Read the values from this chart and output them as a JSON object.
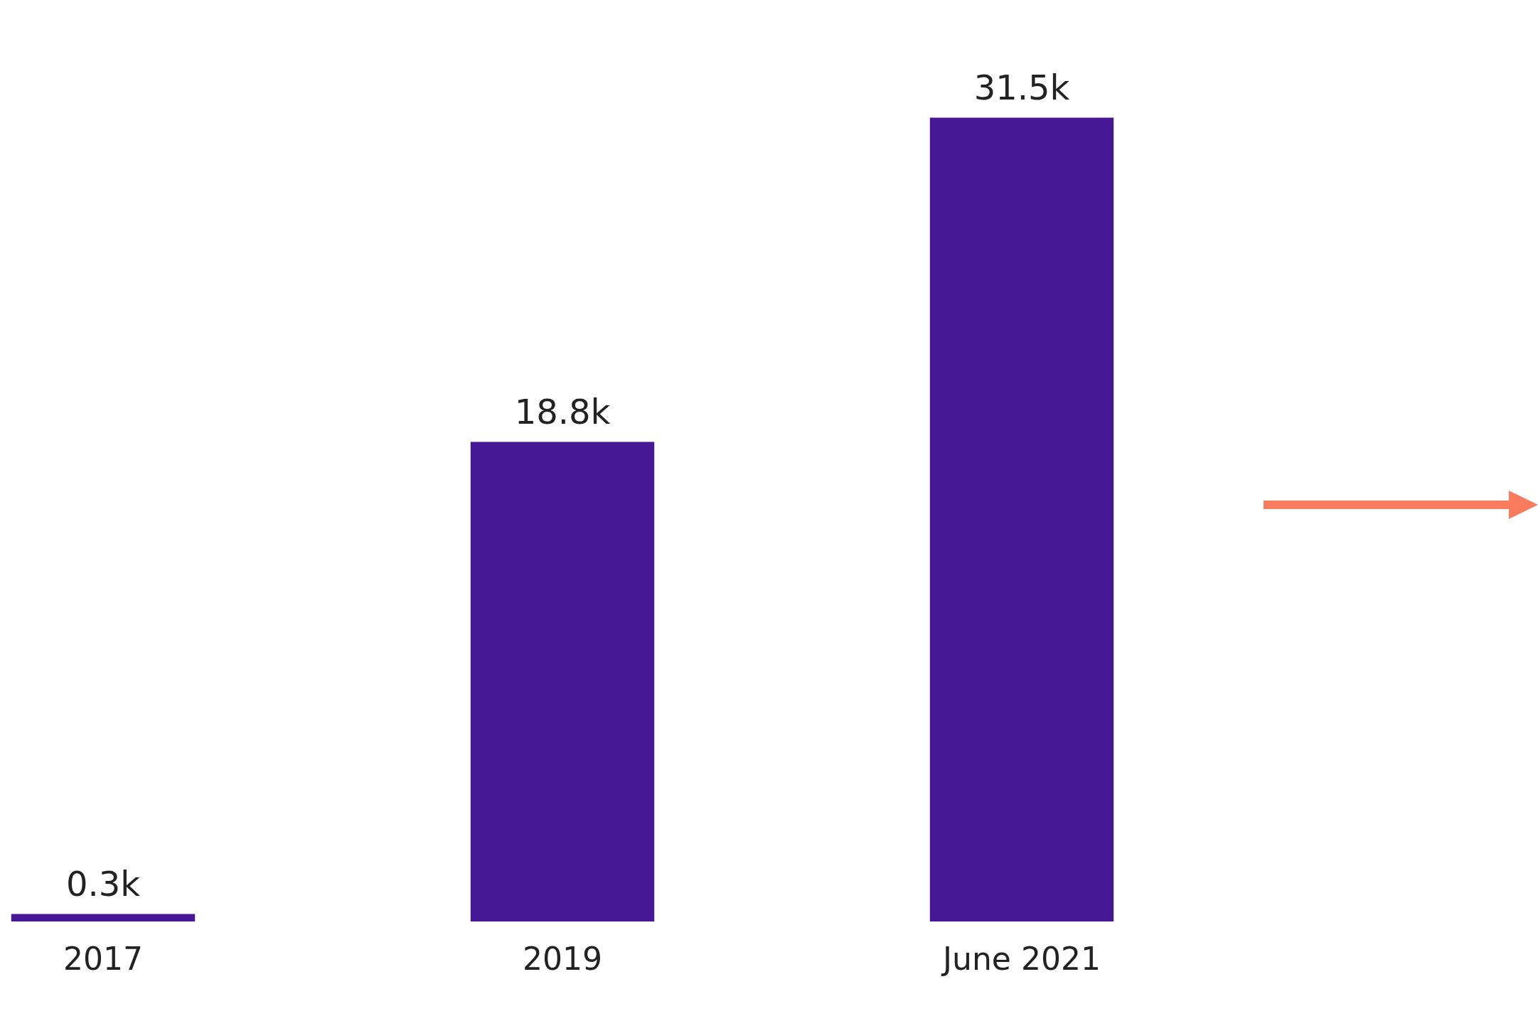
{
  "chart_data": {
    "type": "bar",
    "categories": [
      "2017",
      "2019",
      "June 2021"
    ],
    "values": [
      0.3,
      18.8,
      31.5
    ],
    "color": "#461895",
    "value_labels": [
      "0.3k",
      "18.8k",
      "31.5k"
    ],
    "grid": false,
    "legend": false
  }
}
